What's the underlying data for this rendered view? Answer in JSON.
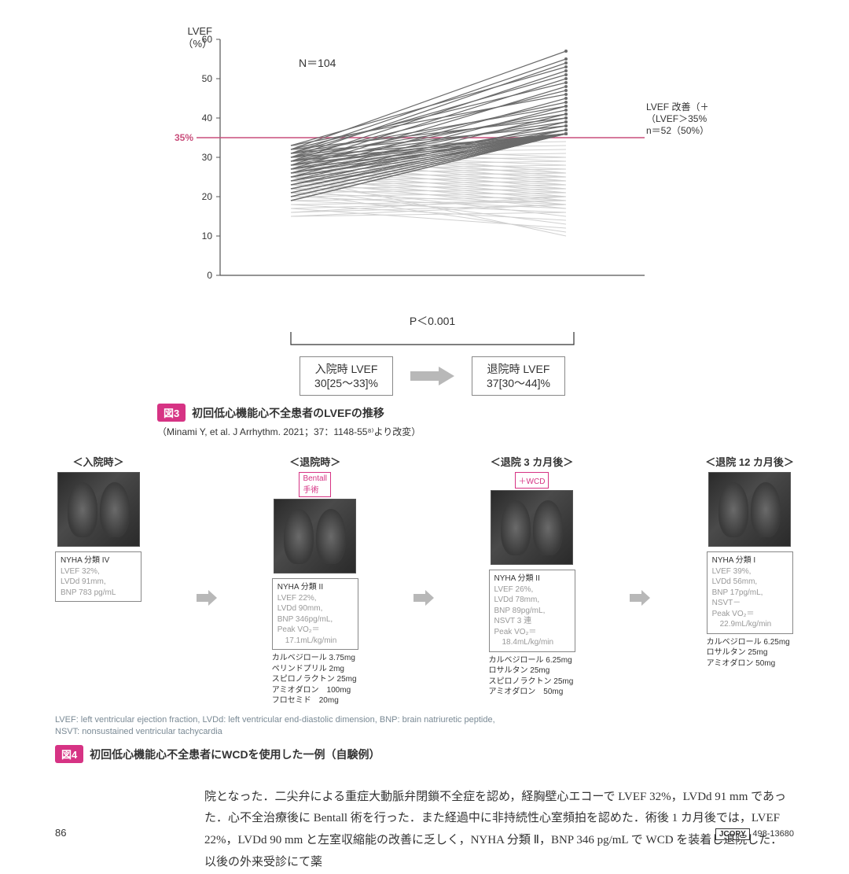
{
  "chart": {
    "type": "line-spaghetti",
    "y_label_top": "LVEF",
    "y_label_unit": "（%）",
    "n_label": "N＝104",
    "threshold_label": "35%",
    "threshold_value": 35,
    "annotation_line1": "LVEF 改善（＋）",
    "annotation_line2": "（LVEF＞35%）",
    "annotation_line3": "n＝52（50%）",
    "ylim": [
      0,
      60
    ],
    "yticks": [
      0,
      10,
      20,
      30,
      40,
      50,
      60
    ],
    "x_categories": [
      "入院時",
      "退院時"
    ],
    "threshold_color": "#c94e7b",
    "improved_color": "#6b6b6b",
    "not_improved_color": "#d0d0d0",
    "grid_color": "#cccccc",
    "background_color": "#ffffff",
    "axis_fontsize": 12,
    "improved_lines": [
      [
        32,
        57
      ],
      [
        31,
        55
      ],
      [
        30,
        54
      ],
      [
        33,
        53
      ],
      [
        29,
        52
      ],
      [
        31,
        51
      ],
      [
        28,
        50
      ],
      [
        32,
        49
      ],
      [
        27,
        48
      ],
      [
        30,
        47
      ],
      [
        33,
        46
      ],
      [
        26,
        45
      ],
      [
        29,
        44
      ],
      [
        31,
        43
      ],
      [
        25,
        43
      ],
      [
        28,
        42
      ],
      [
        30,
        41
      ],
      [
        24,
        41
      ],
      [
        27,
        40
      ],
      [
        32,
        40
      ],
      [
        23,
        39
      ],
      [
        29,
        39
      ],
      [
        26,
        38
      ],
      [
        31,
        38
      ],
      [
        22,
        37
      ],
      [
        28,
        37
      ],
      [
        25,
        37
      ],
      [
        30,
        36
      ],
      [
        21,
        36
      ],
      [
        27,
        36
      ],
      [
        24,
        36
      ],
      [
        20,
        36
      ],
      [
        19,
        36
      ],
      [
        23,
        36
      ],
      [
        26,
        36
      ],
      [
        29,
        36
      ],
      [
        22,
        36
      ],
      [
        25,
        36
      ],
      [
        21,
        36
      ],
      [
        20,
        36
      ],
      [
        19,
        36
      ],
      [
        24,
        36
      ],
      [
        23,
        36
      ],
      [
        22,
        36
      ],
      [
        21,
        36
      ],
      [
        20,
        36
      ],
      [
        19,
        36
      ],
      [
        25,
        36
      ],
      [
        26,
        36
      ],
      [
        27,
        36
      ],
      [
        28,
        36
      ],
      [
        29,
        36
      ]
    ],
    "not_improved_lines": [
      [
        33,
        34
      ],
      [
        32,
        33
      ],
      [
        31,
        32
      ],
      [
        30,
        31
      ],
      [
        29,
        30
      ],
      [
        33,
        30
      ],
      [
        28,
        29
      ],
      [
        32,
        29
      ],
      [
        27,
        28
      ],
      [
        31,
        28
      ],
      [
        26,
        27
      ],
      [
        30,
        27
      ],
      [
        25,
        26
      ],
      [
        29,
        26
      ],
      [
        33,
        26
      ],
      [
        24,
        25
      ],
      [
        28,
        25
      ],
      [
        32,
        25
      ],
      [
        23,
        24
      ],
      [
        27,
        24
      ],
      [
        31,
        24
      ],
      [
        22,
        23
      ],
      [
        26,
        23
      ],
      [
        30,
        23
      ],
      [
        21,
        22
      ],
      [
        25,
        22
      ],
      [
        29,
        22
      ],
      [
        20,
        21
      ],
      [
        24,
        21
      ],
      [
        28,
        21
      ],
      [
        19,
        20
      ],
      [
        23,
        20
      ],
      [
        27,
        20
      ],
      [
        18,
        19
      ],
      [
        22,
        19
      ],
      [
        26,
        19
      ],
      [
        17,
        19
      ],
      [
        21,
        18
      ],
      [
        25,
        18
      ],
      [
        16,
        18
      ],
      [
        20,
        17
      ],
      [
        24,
        17
      ],
      [
        15,
        16
      ],
      [
        19,
        16
      ],
      [
        23,
        15
      ],
      [
        18,
        14
      ],
      [
        22,
        13
      ],
      [
        17,
        12
      ],
      [
        21,
        11
      ],
      [
        25,
        10
      ],
      [
        16,
        20
      ],
      [
        15,
        18
      ]
    ]
  },
  "p_value": "P＜0.001",
  "lvef_admission": {
    "title": "入院時 LVEF",
    "value": "30[25～33]%"
  },
  "lvef_discharge": {
    "title": "退院時 LVEF",
    "value": "37[30～44]%"
  },
  "fig3": {
    "tag": "図3",
    "title": "初回低心機能心不全患者のLVEFの推移",
    "citation": "（Minami Y, et al. J Arrhythm. 2021；37：1148-55⁸⁾より改変）"
  },
  "timeline": {
    "stages": [
      {
        "title": "＜入院時＞",
        "badge": null,
        "box": "NYHA 分類 IV\nLVEF 32%,\nLVDd 91mm,\nBNP 783 pg/mL",
        "meds": null
      },
      {
        "title": "＜退院時＞",
        "badge": "Bentall\n手術",
        "box": "NYHA 分類 II\nLVEF 22%,\nLVDd 90mm,\nBNP 346pg/mL,\nPeak VO₂＝\n　17.1mL/kg/min",
        "meds": "カルベジロール 3.75mg\nペリンドプリル 2mg\nスピロノラクトン 25mg\nアミオダロン　100mg\nフロセミド　20mg"
      },
      {
        "title": "＜退院 3 カ月後＞",
        "badge": "＋WCD",
        "box": "NYHA 分類 II\nLVEF 26%,\nLVDd 78mm,\nBNP 89pg/mL,\nNSVT 3 連\nPeak VO₂＝\n　18.4mL/kg/min",
        "meds": "カルベジロール 6.25mg\nロサルタン 25mg\nスピロノラクトン 25mg\nアミオダロン　50mg"
      },
      {
        "title": "＜退院 12 カ月後＞",
        "badge": null,
        "box": "NYHA 分類 I\nLVEF 39%,\nLVDd 56mm,\nBNP 17pg/mL,\nNSVT－\nPeak VO₂＝\n　22.9mL/kg/min",
        "meds": "カルベジロール 6.25mg\nロサルタン 25mg\nアミオダロン 50mg"
      }
    ]
  },
  "abbrev": "LVEF: left ventricular ejection fraction, LVDd: left ventricular end-diastolic dimension, BNP: brain natriuretic peptide,\nNSVT: nonsustained ventricular tachycardia",
  "fig4": {
    "tag": "図4",
    "title": "初回低心機能心不全患者にWCDを使用した一例（自験例）"
  },
  "body_text": "院となった．二尖弁による重症大動脈弁閉鎖不全症を認め，経胸壁心エコーで LVEF 32%，LVDd 91 mm であった．心不全治療後に Bentall 術を行った．また経過中に非持続性心室頻拍を認めた．術後 1 カ月後では，LVEF 22%，LVDd 90 mm と左室収縮能の改善に乏しく，NYHA 分類 Ⅱ，BNP 346 pg/mL で WCD を装着し退院した．以後の外来受診にて薬",
  "page_number": "86",
  "jcopy_label": "JCOPY",
  "jcopy_code": "498-13680",
  "colors": {
    "pink": "#d63384",
    "gray_arrow": "#b8b8b8"
  }
}
